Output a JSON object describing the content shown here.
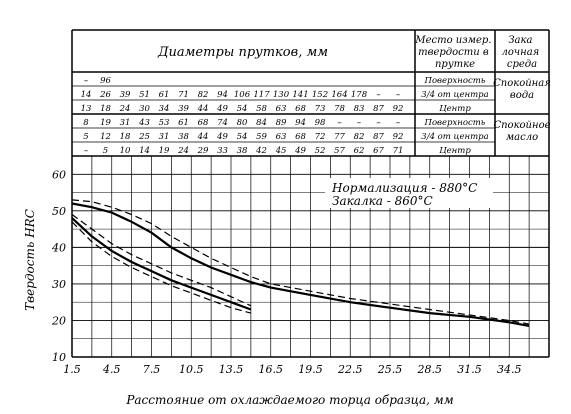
{
  "table": {
    "header_diameters": "Диаметры прутков, мм",
    "header_location": "Место измер. твердости в прутке",
    "header_medium": "Закалочная среда",
    "groups": [
      {
        "medium": "Спокойная вода",
        "rows": [
          {
            "values": [
              "–",
              "96",
              "",
              "",
              "",
              "",
              "",
              "",
              "",
              "",
              "",
              "",
              "",
              "",
              "",
              "",
              ""
            ],
            "location": "Поверхность"
          },
          {
            "values": [
              "14",
              "26",
              "39",
              "51",
              "61",
              "71",
              "82",
              "94",
              "106",
              "117",
              "130",
              "141",
              "152",
              "164",
              "178",
              "–",
              "–"
            ],
            "location": "3/4 от центра"
          },
          {
            "values": [
              "13",
              "18",
              "24",
              "30",
              "34",
              "39",
              "44",
              "49",
              "54",
              "58",
              "63",
              "68",
              "73",
              "78",
              "83",
              "87",
              "92"
            ],
            "location": "Центр"
          }
        ]
      },
      {
        "medium": "Спокойное масло",
        "rows": [
          {
            "values": [
              "8",
              "19",
              "31",
              "43",
              "53",
              "61",
              "68",
              "74",
              "80",
              "84",
              "89",
              "94",
              "98",
              "–",
              "–",
              "–",
              "–"
            ],
            "location": "Поверхность"
          },
          {
            "values": [
              "5",
              "12",
              "18",
              "25",
              "31",
              "38",
              "44",
              "49",
              "54",
              "59",
              "63",
              "68",
              "72",
              "77",
              "82",
              "87",
              "92"
            ],
            "location": "3/4 от центра"
          },
          {
            "values": [
              "–",
              "5",
              "10",
              "14",
              "19",
              "24",
              "29",
              "33",
              "38",
              "42",
              "45",
              "49",
              "52",
              "57",
              "62",
              "67",
              "71"
            ],
            "location": "Центр"
          }
        ]
      }
    ]
  },
  "chart_data": {
    "type": "line",
    "xlabel": "Расстояние от охлаждаемого торца образца, мм",
    "ylabel": "Твердость HRC",
    "xticks": [
      "1.5",
      "4.5",
      "7.5",
      "10.5",
      "13.5",
      "16.5",
      "19.5",
      "22.5",
      "25.5",
      "28.5",
      "31.5",
      "34.5"
    ],
    "yticks": [
      "10",
      "20",
      "30",
      "40",
      "50",
      "60"
    ],
    "xlim": [
      1.5,
      37.5
    ],
    "ylim": [
      10,
      65
    ],
    "grid": true,
    "annotations": [
      "Нормализация - 880°C",
      "Закалка - 860°C"
    ],
    "series": [
      {
        "style": "solid",
        "points": [
          [
            1.5,
            52
          ],
          [
            3,
            51
          ],
          [
            4.5,
            49.5
          ],
          [
            6,
            47
          ],
          [
            7.5,
            44
          ],
          [
            9,
            40
          ],
          [
            10.5,
            37
          ],
          [
            12,
            34.5
          ],
          [
            13.5,
            32.5
          ],
          [
            15,
            30.5
          ],
          [
            16.5,
            29
          ],
          [
            19.5,
            27
          ],
          [
            22.5,
            25
          ],
          [
            25.5,
            23.5
          ],
          [
            28.5,
            22
          ],
          [
            31.5,
            21
          ],
          [
            34.5,
            19.5
          ],
          [
            36,
            18.5
          ]
        ]
      },
      {
        "style": "dashed",
        "points": [
          [
            1.5,
            53
          ],
          [
            3,
            52.5
          ],
          [
            4.5,
            51
          ],
          [
            6,
            49
          ],
          [
            7.5,
            46.5
          ],
          [
            9,
            43
          ],
          [
            10.5,
            40
          ],
          [
            12,
            37
          ],
          [
            13.5,
            34.5
          ],
          [
            15,
            32
          ],
          [
            16.5,
            30
          ],
          [
            19.5,
            28
          ],
          [
            22.5,
            26
          ],
          [
            25.5,
            24.5
          ],
          [
            28.5,
            23
          ],
          [
            31.5,
            21.5
          ],
          [
            34.5,
            20
          ],
          [
            36,
            19
          ]
        ]
      },
      {
        "style": "solid",
        "points": [
          [
            1.5,
            48
          ],
          [
            3,
            43
          ],
          [
            4.5,
            39
          ],
          [
            6,
            36
          ],
          [
            7.5,
            33.5
          ],
          [
            9,
            31
          ],
          [
            10.5,
            29
          ],
          [
            12,
            27
          ],
          [
            13.5,
            25
          ],
          [
            15,
            23
          ]
        ]
      },
      {
        "style": "dashed",
        "points": [
          [
            1.5,
            49
          ],
          [
            3,
            45
          ],
          [
            4.5,
            41
          ],
          [
            6,
            38
          ],
          [
            7.5,
            35.5
          ],
          [
            9,
            33
          ],
          [
            10.5,
            31
          ],
          [
            12,
            29
          ],
          [
            13.5,
            26.5
          ],
          [
            15,
            24
          ]
        ]
      },
      {
        "style": "dashed",
        "points": [
          [
            1.5,
            47
          ],
          [
            3,
            41.5
          ],
          [
            4.5,
            37.5
          ],
          [
            6,
            34.5
          ],
          [
            7.5,
            32
          ],
          [
            9,
            29.5
          ],
          [
            10.5,
            27.5
          ],
          [
            12,
            25.5
          ],
          [
            13.5,
            23.5
          ],
          [
            15,
            22
          ]
        ]
      }
    ]
  }
}
